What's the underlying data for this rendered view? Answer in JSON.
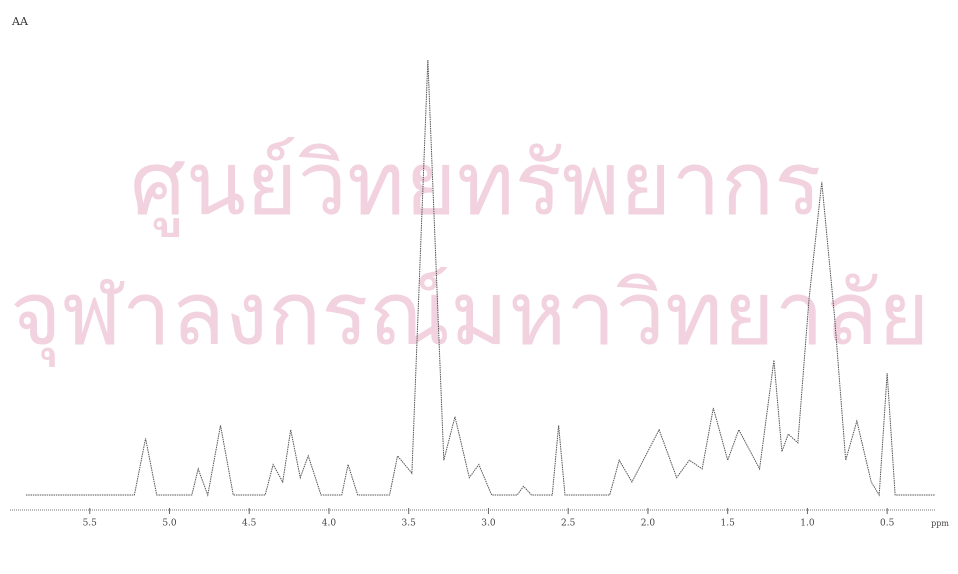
{
  "chart_data": {
    "type": "line",
    "title": "AA",
    "x_label": "ppm",
    "annotations": [
      "ศูนย์วิทยทรัพยากร",
      "จุฬาลงกรณ์มหาวิทยาลัย"
    ],
    "x": [
      5.9,
      5.22,
      5.15,
      5.08,
      4.86,
      4.82,
      4.76,
      4.68,
      4.6,
      4.4,
      4.35,
      4.29,
      4.24,
      4.18,
      4.13,
      4.05,
      3.92,
      3.88,
      3.82,
      3.62,
      3.57,
      3.48,
      3.38,
      3.28,
      3.21,
      3.12,
      3.06,
      2.98,
      2.82,
      2.78,
      2.73,
      2.6,
      2.56,
      2.52,
      2.24,
      2.18,
      2.1,
      1.93,
      1.82,
      1.74,
      1.66,
      1.59,
      1.5,
      1.43,
      1.3,
      1.21,
      1.16,
      1.12,
      1.06,
      0.99,
      0.91,
      0.83,
      0.76,
      0.69,
      0.6,
      0.55,
      0.5,
      0.45,
      0.2
    ],
    "series": [
      {
        "color": "#555555",
        "values": [
          0,
          0,
          13,
          0,
          0,
          6,
          0,
          16,
          0,
          0,
          7,
          3,
          15,
          4,
          9,
          0,
          0,
          7,
          0,
          0,
          9,
          5,
          100,
          8,
          18,
          4,
          7,
          0,
          0,
          2,
          0,
          0,
          16,
          0,
          0,
          8,
          3,
          15,
          4,
          8,
          6,
          20,
          8,
          15,
          6,
          31,
          10,
          14,
          12,
          45,
          72,
          41,
          8,
          17,
          3,
          0,
          28,
          0,
          0
        ]
      }
    ],
    "xlim": [
      6.0,
      0.2
    ],
    "ylim": [
      0,
      100
    ],
    "xticks": [
      5.5,
      {
        "value": 5,
        "label": "5.0"
      },
      4.5,
      {
        "value": 4,
        "label": "4.0"
      },
      3.5,
      {
        "value": 3,
        "label": "3.0"
      },
      2.5,
      {
        "value": 2,
        "label": "2.0"
      },
      1.5,
      {
        "value": 1,
        "label": "1.0"
      },
      0.5
    ],
    "grid": false
  }
}
